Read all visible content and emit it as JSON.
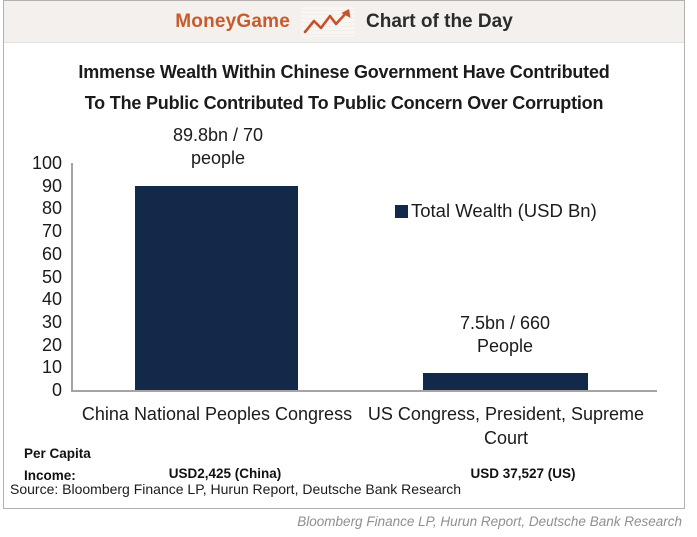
{
  "header": {
    "brand": "MoneyGame",
    "title": "Chart of the Day"
  },
  "title": {
    "line1": "Immense Wealth Within Chinese Government Have Contributed",
    "line2": "To The Public Contributed To Public Concern Over Corruption"
  },
  "chart_data": {
    "type": "bar",
    "categories": [
      "China National Peoples Congress",
      "US Congress, President, Supreme Court"
    ],
    "series": [
      {
        "name": "Total Wealth (USD Bn)",
        "values": [
          89.8,
          7.5
        ]
      }
    ],
    "annotations": [
      [
        "89.8bn / 70",
        "people"
      ],
      [
        "7.5bn / 660",
        "People"
      ]
    ],
    "title": "",
    "xlabel": "",
    "ylabel": "",
    "ylim": [
      0,
      100
    ],
    "yticks": [
      0,
      10,
      20,
      30,
      40,
      50,
      60,
      70,
      80,
      90,
      100
    ],
    "grid": false,
    "legend_position": "center-right",
    "bar_color": "#12294a",
    "axis_color": "#a4a4a4"
  },
  "footer": {
    "per_capita_line1": "Per Capita",
    "per_capita_line2": "Income:",
    "china_income": "USD2,425 (China)",
    "us_income": "USD 37,527 (US)",
    "source": "Source: Bloomberg Finance LP, Hurun Report, Deutsche Bank Research",
    "attribution": "Bloomberg Finance LP, Hurun Report, Deutsche Bank Research"
  },
  "colors": {
    "accent_orange": "#c75b2d",
    "bar_navy": "#12294a",
    "header_bg": "#f3f0ed",
    "attribution_gray": "#8f8f8f"
  }
}
